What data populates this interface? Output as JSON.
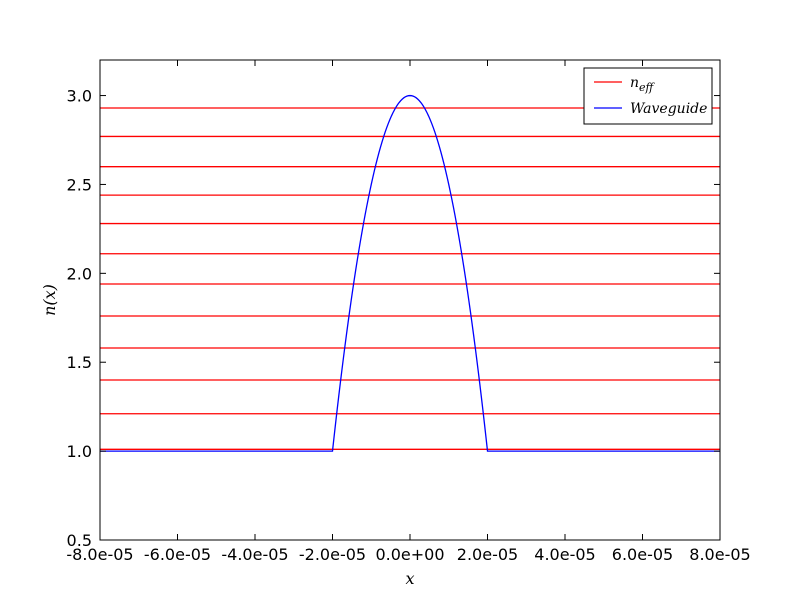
{
  "chart_data": {
    "type": "line",
    "xlabel": "x",
    "ylabel": "n(x)",
    "xlim": [
      -8e-05,
      8e-05
    ],
    "ylim": [
      0.5,
      3.2
    ],
    "xticks": [
      -8e-05,
      -6e-05,
      -4e-05,
      -2e-05,
      0,
      2e-05,
      4e-05,
      6e-05,
      8e-05
    ],
    "xtick_labels": [
      "-8.0e-05",
      "-6.0e-05",
      "-4.0e-05",
      "-2.0e-05",
      "0.0e+00",
      "2.0e-05",
      "4.0e-05",
      "6.0e-05",
      "8.0e-05"
    ],
    "yticks": [
      0.5,
      1.0,
      1.5,
      2.0,
      2.5,
      3.0
    ],
    "ytick_labels": [
      "0.5",
      "1.0",
      "1.5",
      "2.0",
      "2.5",
      "3.0"
    ],
    "grid": false,
    "legend_position": "top-right",
    "series": [
      {
        "name": "n_eff",
        "color": "#ff0000",
        "kind": "horizontal-lines",
        "values": [
          1.01,
          1.21,
          1.4,
          1.58,
          1.76,
          1.94,
          2.11,
          2.28,
          2.44,
          2.6,
          2.77,
          2.93
        ]
      },
      {
        "name": "Waveguide",
        "color": "#0000ff",
        "kind": "profile",
        "background_index": 1.0,
        "peak_index": 3.0,
        "core_half_width": 2e-05
      }
    ],
    "legend": [
      {
        "label_base": "n",
        "label_sub": "eff",
        "color": "#ff0000"
      },
      {
        "label_base": "Waveguide",
        "label_sub": "",
        "color": "#0000ff"
      }
    ]
  }
}
